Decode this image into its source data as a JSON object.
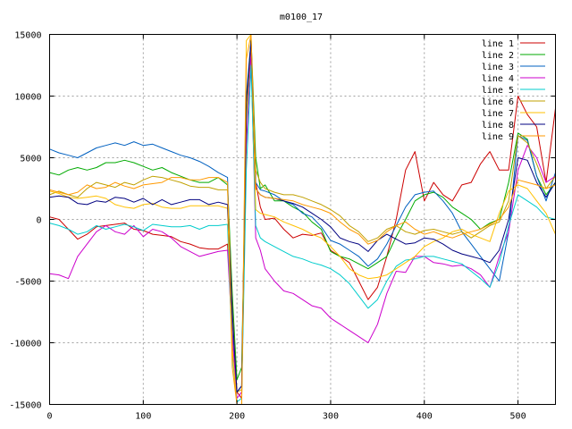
{
  "chart_data": {
    "type": "line",
    "title": "m0100_17",
    "xlabel": "",
    "ylabel": "",
    "xlim": [
      0,
      540
    ],
    "ylim": [
      -15000,
      15000
    ],
    "xticks": [
      0,
      100,
      200,
      300,
      400,
      500
    ],
    "yticks": [
      -15000,
      -10000,
      -5000,
      0,
      5000,
      10000,
      15000
    ],
    "grid": true,
    "legend_position": "top-right",
    "x": [
      0,
      10,
      20,
      30,
      40,
      50,
      60,
      70,
      80,
      90,
      100,
      110,
      120,
      130,
      140,
      150,
      160,
      170,
      180,
      190,
      195,
      200,
      205,
      210,
      215,
      220,
      225,
      230,
      240,
      250,
      260,
      270,
      280,
      290,
      300,
      310,
      320,
      330,
      340,
      350,
      360,
      370,
      380,
      390,
      400,
      410,
      420,
      430,
      440,
      450,
      460,
      470,
      480,
      490,
      500,
      510,
      520,
      530,
      540
    ],
    "series": [
      {
        "name": "line 1",
        "color": "#cc0000",
        "values": [
          200,
          0,
          -800,
          -1600,
          -1200,
          -600,
          -500,
          -400,
          -300,
          -800,
          -900,
          -1200,
          -1300,
          -1400,
          -1800,
          -2000,
          -2300,
          -2400,
          -2400,
          -2000,
          -9000,
          -14000,
          -14500,
          9000,
          14500,
          3000,
          1000,
          0,
          100,
          -800,
          -1500,
          -1200,
          -1300,
          -1100,
          -2500,
          -3000,
          -3500,
          -5000,
          -6500,
          -5500,
          -3000,
          0,
          4000,
          5500,
          1500,
          3000,
          2000,
          1500,
          2800,
          3000,
          4500,
          5500,
          4000,
          4000,
          10000,
          8500,
          7500,
          3000,
          9000
        ]
      },
      {
        "name": "line 2",
        "color": "#00aa00",
        "values": [
          3800,
          3600,
          4000,
          4200,
          4000,
          4200,
          4600,
          4600,
          4800,
          4600,
          4300,
          4000,
          4200,
          3800,
          3500,
          3200,
          3000,
          3000,
          3400,
          2800,
          -6000,
          -13000,
          -12000,
          8000,
          14800,
          5000,
          2500,
          2800,
          1500,
          1500,
          1000,
          600,
          -200,
          -800,
          -2600,
          -3000,
          -3200,
          -3600,
          -4000,
          -3500,
          -3000,
          -1400,
          0,
          1500,
          2000,
          2200,
          1800,
          1000,
          500,
          0,
          -800,
          -300,
          0,
          3000,
          7000,
          6500,
          3500,
          2000,
          3000
        ]
      },
      {
        "name": "line 3",
        "color": "#0060c0",
        "values": [
          5700,
          5400,
          5200,
          5000,
          5400,
          5800,
          6000,
          6200,
          6000,
          6300,
          6000,
          6100,
          5800,
          5500,
          5200,
          5000,
          4700,
          4300,
          3800,
          3400,
          -9000,
          -14000,
          -13500,
          10000,
          14500,
          3000,
          2400,
          2300,
          2000,
          1500,
          1200,
          500,
          200,
          -600,
          -1700,
          -2000,
          -2500,
          -3000,
          -3800,
          -3200,
          -2000,
          -500,
          1000,
          2000,
          2200,
          2300,
          1500,
          500,
          -1000,
          -2000,
          -3000,
          -4000,
          -5000,
          -1000,
          6800,
          6400,
          3500,
          1500,
          3800
        ]
      },
      {
        "name": "line 4",
        "color": "#cc00cc",
        "values": [
          -4400,
          -4500,
          -4800,
          -3000,
          -2000,
          -1000,
          -500,
          -1000,
          -1200,
          -500,
          -1400,
          -800,
          -1000,
          -1500,
          -2200,
          -2600,
          -3000,
          -2800,
          -2600,
          -2500,
          -9500,
          -14500,
          -14000,
          6000,
          13500,
          -1500,
          -2500,
          -4000,
          -5000,
          -5800,
          -6000,
          -6500,
          -7000,
          -7200,
          -8000,
          -8500,
          -9000,
          -9500,
          -10000,
          -8500,
          -6000,
          -4200,
          -4300,
          -3000,
          -3000,
          -3500,
          -3600,
          -3800,
          -3700,
          -4000,
          -4500,
          -5500,
          -3000,
          -1000,
          4000,
          6000,
          5000,
          3000,
          3500
        ]
      },
      {
        "name": "line 5",
        "color": "#00cccc",
        "values": [
          -300,
          -500,
          -800,
          -1200,
          -1000,
          -500,
          -800,
          -600,
          -400,
          -600,
          -900,
          -400,
          -500,
          -600,
          -600,
          -500,
          -800,
          -500,
          -500,
          -400,
          -11000,
          -14800,
          -14500,
          4000,
          12500,
          -500,
          -1500,
          -1800,
          -2200,
          -2600,
          -3000,
          -3200,
          -3500,
          -3700,
          -4000,
          -4500,
          -5200,
          -6200,
          -7200,
          -6500,
          -5000,
          -3800,
          -3300,
          -3200,
          -3000,
          -3000,
          -3200,
          -3400,
          -3600,
          -4200,
          -4800,
          -5500,
          -3500,
          -500,
          2000,
          1500,
          1000,
          200,
          0
        ]
      },
      {
        "name": "line 6",
        "color": "#c0a000",
        "values": [
          2000,
          2300,
          2000,
          1800,
          2500,
          3000,
          2800,
          2600,
          3000,
          2800,
          3200,
          3500,
          3400,
          3200,
          3000,
          2700,
          2600,
          2600,
          2400,
          2400,
          -7000,
          -14000,
          -13800,
          8500,
          14500,
          4000,
          3000,
          2500,
          2200,
          2000,
          2000,
          1800,
          1500,
          1200,
          800,
          300,
          -500,
          -1000,
          -1800,
          -1500,
          -800,
          -500,
          -1000,
          -1200,
          -900,
          -800,
          -1000,
          -1200,
          -1000,
          -1500,
          -1000,
          -500,
          -200,
          1500,
          6800,
          6200,
          4500,
          2500,
          3500
        ]
      },
      {
        "name": "line 7",
        "color": "#ffc000",
        "values": [
          2300,
          2100,
          1800,
          1700,
          1800,
          1900,
          1700,
          1200,
          1000,
          900,
          1200,
          1300,
          1000,
          900,
          900,
          1100,
          1100,
          1100,
          1100,
          900,
          -10500,
          -15000,
          -15000,
          14500,
          15000,
          800,
          500,
          400,
          200,
          -200,
          -500,
          -800,
          -1200,
          -1500,
          -2200,
          -3000,
          -4000,
          -4500,
          -4800,
          -4700,
          -4500,
          -4000,
          -3500,
          -3000,
          -2200,
          -1800,
          -1500,
          -1000,
          -800,
          -1200,
          -1500,
          -1800,
          500,
          2300,
          2800,
          2500,
          1500,
          500,
          -1200
        ]
      },
      {
        "name": "line 8",
        "color": "#000080",
        "values": [
          1800,
          1900,
          1800,
          1300,
          1200,
          1500,
          1400,
          1800,
          1700,
          1400,
          1700,
          1200,
          1600,
          1200,
          1400,
          1600,
          1600,
          1200,
          1400,
          1200,
          -7500,
          -14000,
          -13500,
          9500,
          14500,
          2500,
          2000,
          1800,
          1700,
          1500,
          1300,
          1000,
          500,
          0,
          -600,
          -1500,
          -1800,
          -2000,
          -2600,
          -1700,
          -1200,
          -1600,
          -2000,
          -1900,
          -1500,
          -1600,
          -2000,
          -2500,
          -2800,
          -3000,
          -3200,
          -3500,
          -2500,
          0,
          5000,
          4800,
          3000,
          1800,
          3000
        ]
      },
      {
        "name": "line 9",
        "color": "#ff9900",
        "values": [
          2400,
          2200,
          2000,
          2200,
          2800,
          2500,
          2600,
          3000,
          2700,
          2500,
          2800,
          2900,
          3000,
          3400,
          3400,
          3200,
          3200,
          3400,
          3400,
          3000,
          -12000,
          -15000,
          -15000,
          13000,
          15000,
          2500,
          2000,
          1800,
          1700,
          1600,
          1500,
          1200,
          1000,
          800,
          500,
          -200,
          -800,
          -1200,
          -2000,
          -1700,
          -1000,
          -500,
          -200,
          -800,
          -1200,
          -1000,
          -1300,
          -1500,
          -1200,
          -1000,
          -800,
          -400,
          0,
          1000,
          3200,
          3000,
          2800,
          2500,
          2800
        ]
      }
    ]
  }
}
